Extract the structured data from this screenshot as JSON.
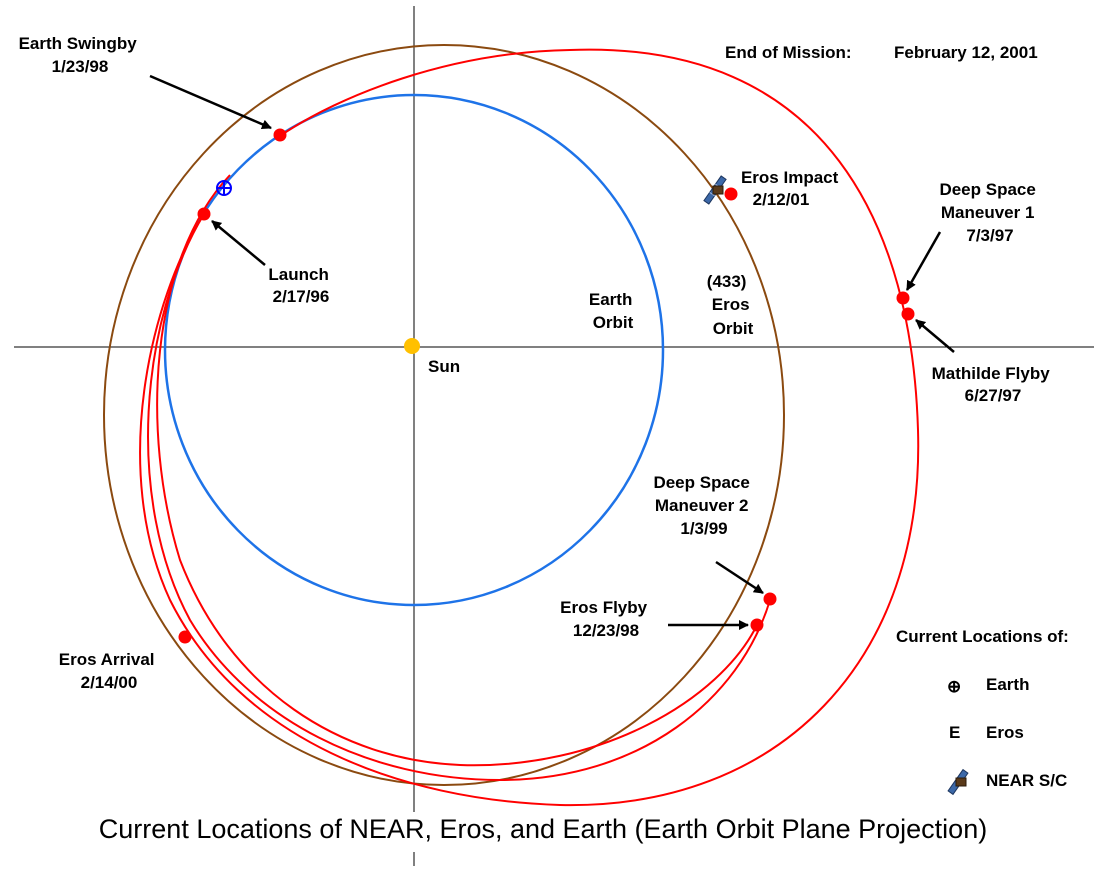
{
  "colors": {
    "earth_orbit": "#1E73E8",
    "eros_orbit": "#8B4A10",
    "near_trajectory": "#FF0000",
    "event_marker": "#FF0000",
    "sun": "#FFC000",
    "earth_symbol": "#0000FF",
    "eros_symbol": "#8B1A1A",
    "axis": "#000000"
  },
  "mission": {
    "end_label": "End of Mission:",
    "end_date": "February 12, 2001"
  },
  "orbits": {
    "earth": [
      "Earth",
      "Orbit"
    ],
    "eros": [
      "(433)",
      "Eros",
      "Orbit"
    ],
    "sun": "Sun"
  },
  "events": [
    {
      "id": "earth-swingby",
      "lines": [
        "Earth Swingby",
        "1/23/98"
      ]
    },
    {
      "id": "launch",
      "lines": [
        "Launch",
        "2/17/96"
      ]
    },
    {
      "id": "eros-impact",
      "lines": [
        "Eros Impact",
        "2/12/01"
      ]
    },
    {
      "id": "dsm1",
      "lines": [
        "Deep Space",
        "Maneuver 1",
        "7/3/97"
      ]
    },
    {
      "id": "mathilde",
      "lines": [
        "Mathilde Flyby",
        "6/27/97"
      ]
    },
    {
      "id": "dsm2",
      "lines": [
        "Deep Space",
        "Maneuver 2",
        "1/3/99"
      ]
    },
    {
      "id": "eros-flyby",
      "lines": [
        "Eros Flyby",
        "12/23/98"
      ]
    },
    {
      "id": "eros-arrival",
      "lines": [
        "Eros Arrival",
        "2/14/00"
      ]
    }
  ],
  "legend": {
    "title": "Current Locations of:",
    "items": [
      {
        "id": "earth",
        "symbol": "⊕",
        "label": "Earth"
      },
      {
        "id": "eros",
        "symbol": "E",
        "label": "Eros"
      },
      {
        "id": "near",
        "symbol": "",
        "label": "NEAR S/C"
      }
    ]
  },
  "title": "Current Locations of NEAR, Eros, and Earth (Earth Orbit Plane Projection)"
}
